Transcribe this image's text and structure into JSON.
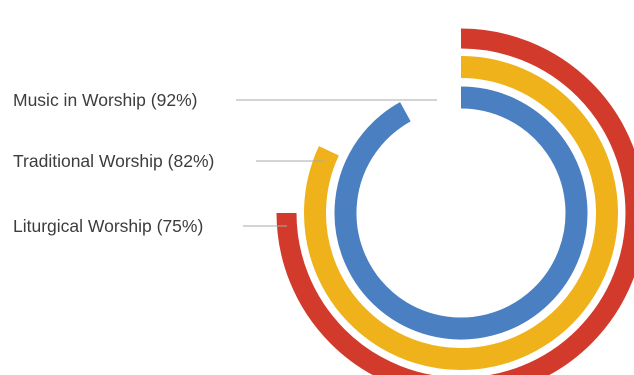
{
  "chart_data": {
    "type": "radial-bar",
    "series": [
      {
        "name": "Music in Worship",
        "value": 92,
        "label": "Music in Worship (92%)",
        "color": "#4a7fc1"
      },
      {
        "name": "Traditional Worship",
        "value": 82,
        "label": "Traditional Worship (82%)",
        "color": "#efb21a"
      },
      {
        "name": "Liturgical Worship",
        "value": 75,
        "label": "Liturgical Worship (75%)",
        "color": "#d23a2b"
      }
    ],
    "scale_max": 100,
    "start": "top",
    "direction": "clockwise"
  }
}
